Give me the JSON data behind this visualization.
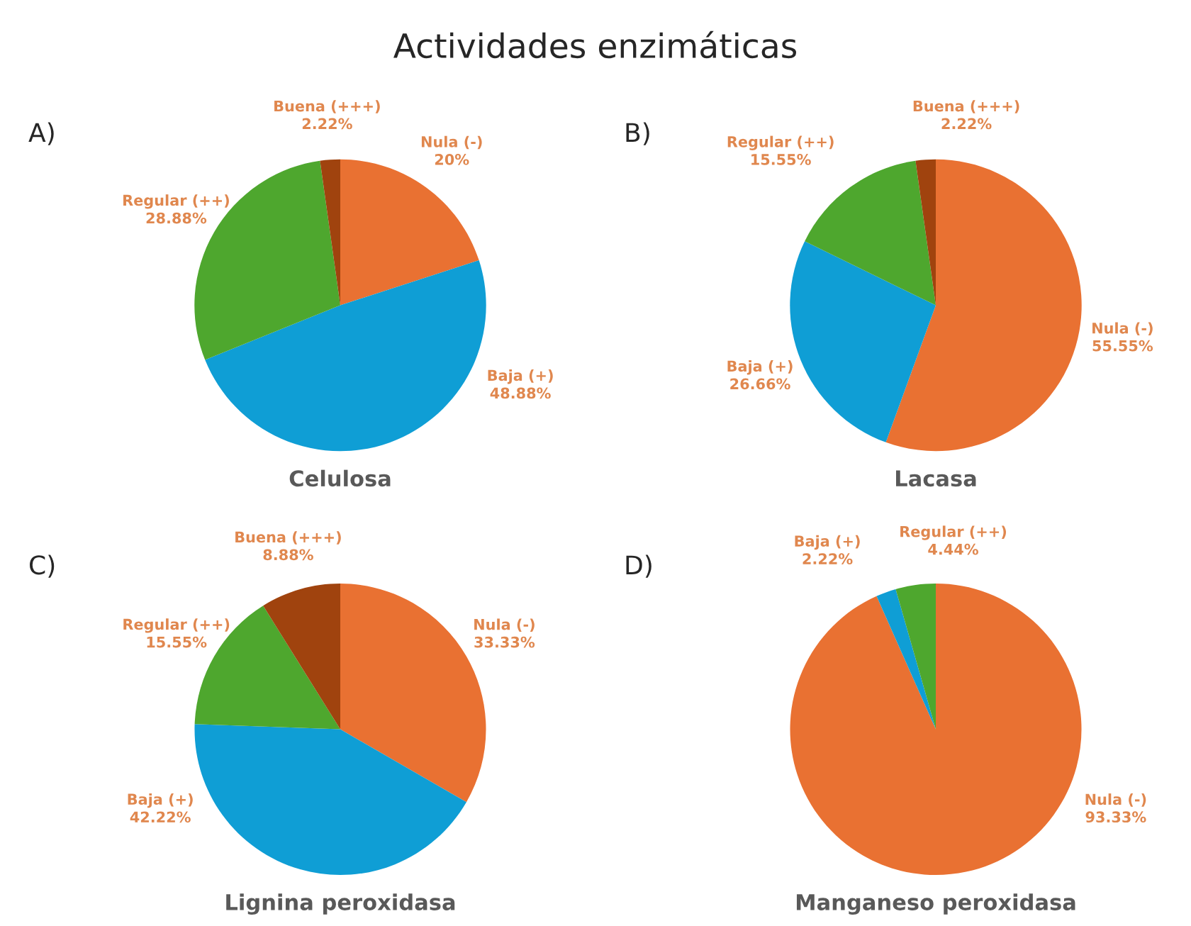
{
  "chart_data": [
    {
      "type": "pie",
      "title": "Actividades enzimáticas",
      "annotations": [
        "A)"
      ],
      "xlabel": "Celulosa",
      "categories": [
        "Nula (-)",
        "Baja (+)",
        "Regular (++)",
        "Buena (+++)"
      ],
      "values": [
        20,
        48.88,
        28.88,
        2.22
      ],
      "value_labels": [
        "20%",
        "48.88%",
        "28.88%",
        "2.22%"
      ],
      "colors": [
        "#e97132",
        "#0f9ed5",
        "#4ea72e",
        "#a0430e"
      ]
    },
    {
      "type": "pie",
      "annotations": [
        "B)"
      ],
      "xlabel": "Lacasa",
      "categories": [
        "Nula (-)",
        "Baja (+)",
        "Regular (++)",
        "Buena (+++)"
      ],
      "values": [
        55.55,
        26.66,
        15.55,
        2.22
      ],
      "value_labels": [
        "55.55%",
        "26.66%",
        "15.55%",
        "2.22%"
      ],
      "colors": [
        "#e97132",
        "#0f9ed5",
        "#4ea72e",
        "#a0430e"
      ]
    },
    {
      "type": "pie",
      "annotations": [
        "C)"
      ],
      "xlabel": "Lignina peroxidasa",
      "categories": [
        "Nula (-)",
        "Baja (+)",
        "Regular (++)",
        "Buena (+++)"
      ],
      "values": [
        33.33,
        42.22,
        15.55,
        8.88
      ],
      "value_labels": [
        "33.33%",
        "42.22%",
        "15.55%",
        "8.88%"
      ],
      "colors": [
        "#e97132",
        "#0f9ed5",
        "#4ea72e",
        "#a0430e"
      ]
    },
    {
      "type": "pie",
      "annotations": [
        "D)"
      ],
      "xlabel": "Manganeso peroxidasa",
      "categories": [
        "Nula (-)",
        "Baja (+)",
        "Regular (++)"
      ],
      "values": [
        93.33,
        2.22,
        4.44
      ],
      "value_labels": [
        "93.33%",
        "2.22%",
        "4.44%"
      ],
      "colors": [
        "#e97132",
        "#0f9ed5",
        "#4ea72e"
      ]
    }
  ]
}
